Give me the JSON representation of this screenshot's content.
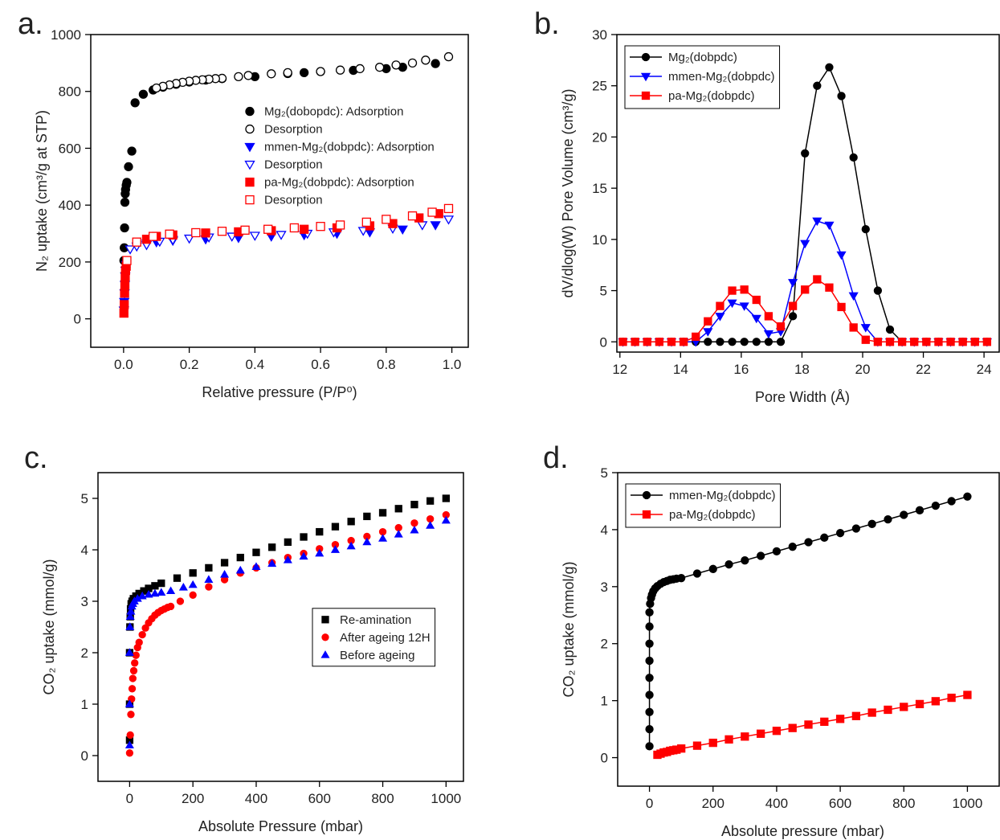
{
  "chart_data": [
    {
      "type": "scatter",
      "panel_label": "a.",
      "x_label": "Relative pressure (P/P⁰)",
      "y_label": "N₂ uptake (cm³/g at STP)",
      "xlim": [
        -0.1,
        1.05
      ],
      "ylim": [
        -100,
        1000
      ],
      "xticks": [
        {
          "value": 0,
          "label": "0.0"
        },
        {
          "value": 0.2,
          "label": "0.2"
        },
        {
          "value": 0.4,
          "label": "0.4"
        },
        {
          "value": 0.6,
          "label": "0.6"
        },
        {
          "value": 0.8,
          "label": "0.8"
        },
        {
          "value": 1,
          "label": "1.0"
        }
      ],
      "yticks": [
        0,
        200,
        400,
        600,
        800,
        1000
      ],
      "legend_loc": "right",
      "legend_box": false,
      "series": [
        {
          "name": "Mg₂(dobopdc): Adsorption",
          "color": "#000000",
          "marker": "circle",
          "filled": true,
          "x": [
            0.001,
            0.002,
            0.003,
            0.004,
            0.005,
            0.006,
            0.008,
            0.01,
            0.015,
            0.025,
            0.035,
            0.06,
            0.09,
            0.12,
            0.16,
            0.2,
            0.25,
            0.3,
            0.4,
            0.5,
            0.55,
            0.6,
            0.7,
            0.8,
            0.85,
            0.95
          ],
          "values": [
            205,
            250,
            320,
            410,
            440,
            455,
            470,
            480,
            535,
            590,
            760,
            790,
            805,
            815,
            825,
            833,
            840,
            845,
            852,
            863,
            866,
            870,
            874,
            880,
            885,
            898
          ]
        },
        {
          "name": "Desorption",
          "color": "#000000",
          "marker": "circle",
          "filled": false,
          "x": [
            0.99,
            0.92,
            0.88,
            0.83,
            0.78,
            0.72,
            0.66,
            0.6,
            0.5,
            0.45,
            0.38,
            0.35,
            0.3,
            0.28,
            0.26,
            0.24,
            0.22,
            0.2,
            0.18,
            0.16,
            0.14,
            0.12,
            0.1
          ],
          "values": [
            922,
            910,
            900,
            893,
            885,
            880,
            875,
            870,
            866,
            862,
            856,
            852,
            846,
            845,
            843,
            841,
            839,
            836,
            832,
            828,
            823,
            818,
            812
          ]
        },
        {
          "name": "mmen-Mg₂(dobpdc): Adsorption",
          "color": "#0000ff",
          "marker": "triangle-down",
          "filled": true,
          "x": [
            0.001,
            0.002,
            0.003,
            0.004,
            0.005,
            0.006,
            0.008,
            0.07,
            0.1,
            0.15,
            0.25,
            0.35,
            0.45,
            0.55,
            0.65,
            0.75,
            0.85,
            0.95
          ],
          "values": [
            30,
            60,
            90,
            120,
            150,
            170,
            190,
            265,
            270,
            275,
            280,
            285,
            290,
            295,
            300,
            305,
            315,
            330
          ]
        },
        {
          "name": "Desorption",
          "color": "#0000ff",
          "marker": "triangle-down",
          "filled": false,
          "x": [
            0.99,
            0.91,
            0.82,
            0.73,
            0.64,
            0.56,
            0.48,
            0.4,
            0.33,
            0.26,
            0.2,
            0.15,
            0.11,
            0.07,
            0.04,
            0.02
          ],
          "values": [
            350,
            330,
            318,
            310,
            305,
            300,
            296,
            293,
            290,
            287,
            283,
            278,
            272,
            260,
            255,
            245
          ]
        },
        {
          "name": "pa-Mg₂(dobpdc): Adsorption",
          "color": "#ff0000",
          "marker": "square",
          "filled": true,
          "x": [
            0.001,
            0.002,
            0.003,
            0.004,
            0.005,
            0.006,
            0.008,
            0.07,
            0.1,
            0.15,
            0.25,
            0.35,
            0.45,
            0.55,
            0.65,
            0.75,
            0.82,
            0.9,
            0.96
          ],
          "values": [
            20,
            50,
            90,
            120,
            150,
            170,
            185,
            280,
            290,
            295,
            302,
            306,
            310,
            315,
            320,
            327,
            335,
            355,
            370
          ]
        },
        {
          "name": "Desorption",
          "color": "#ff0000",
          "marker": "square",
          "filled": false,
          "x": [
            0.99,
            0.94,
            0.88,
            0.8,
            0.74,
            0.66,
            0.6,
            0.52,
            0.44,
            0.37,
            0.3,
            0.22,
            0.14,
            0.09,
            0.04,
            0.01
          ],
          "values": [
            388,
            375,
            362,
            350,
            340,
            330,
            325,
            320,
            315,
            312,
            308,
            303,
            298,
            290,
            270,
            205
          ]
        }
      ]
    },
    {
      "type": "line",
      "panel_label": "b.",
      "x_label": "Pore Width (Å)",
      "y_label": "dV/dlog(W) Pore Volume (cm³/g)",
      "xlim": [
        11.9,
        24.5
      ],
      "ylim": [
        -1,
        30
      ],
      "xticks": [
        12,
        14,
        16,
        18,
        20,
        22,
        24
      ],
      "yticks": [
        0,
        5,
        10,
        15,
        20,
        25,
        30
      ],
      "legend_loc": "upper left",
      "legend_box": true,
      "x": [
        12.1,
        12.5,
        12.9,
        13.3,
        13.7,
        14.1,
        14.5,
        14.9,
        15.3,
        15.7,
        16.1,
        16.5,
        16.9,
        17.3,
        17.7,
        18.1,
        18.5,
        18.9,
        19.3,
        19.7,
        20.1,
        20.5,
        20.9,
        21.3,
        21.7,
        22.1,
        22.5,
        22.9,
        23.3,
        23.7,
        24.1
      ],
      "series": [
        {
          "name": "Mg₂(dobpdc)",
          "color": "#000000",
          "marker": "circle",
          "filled": true,
          "values": [
            0,
            0,
            0,
            0,
            0,
            0,
            0,
            0,
            0,
            0,
            0,
            0,
            0,
            0,
            2.5,
            18.4,
            25,
            26.8,
            24,
            18,
            11,
            5,
            1.2,
            0,
            0,
            0,
            0,
            0,
            0,
            0,
            0
          ]
        },
        {
          "name": "mmen-Mg₂(dobpdc)",
          "color": "#0000ff",
          "marker": "triangle-down",
          "filled": true,
          "values": [
            0,
            0,
            0,
            0,
            0,
            0,
            0,
            1,
            2.5,
            3.8,
            3.5,
            2.3,
            0.8,
            1,
            5.8,
            9.6,
            11.8,
            11.4,
            8.5,
            4.5,
            1.4,
            0,
            0,
            0,
            0,
            0,
            0,
            0,
            0,
            0,
            0
          ]
        },
        {
          "name": "pa-Mg₂(dobpdc)",
          "color": "#ff0000",
          "marker": "square",
          "filled": true,
          "values": [
            0,
            0,
            0,
            0,
            0,
            0,
            0.5,
            2,
            3.5,
            5,
            5.1,
            4.1,
            2.5,
            1.5,
            3.5,
            5.1,
            6.1,
            5.3,
            3.4,
            1.4,
            0.2,
            0,
            0,
            0,
            0,
            0,
            0,
            0,
            0,
            0,
            0
          ]
        }
      ]
    },
    {
      "type": "scatter",
      "panel_label": "c.",
      "x_label": "Absolute Pressure (mbar)",
      "y_label": "CO₂ uptake (mmol/g)",
      "xlim": [
        -100,
        1055
      ],
      "ylim": [
        -0.5,
        5.5
      ],
      "xticks": [
        0,
        200,
        400,
        600,
        800,
        1000
      ],
      "yticks": [
        0,
        1,
        2,
        3,
        4,
        5
      ],
      "legend_loc": "center right",
      "legend_box": true,
      "series": [
        {
          "name": "Re-amination",
          "color": "#000000",
          "marker": "square",
          "filled": true,
          "x": [
            0,
            0,
            0,
            1,
            2,
            3,
            5,
            8,
            12,
            20,
            30,
            45,
            60,
            80,
            100,
            150,
            200,
            250,
            300,
            350,
            400,
            450,
            500,
            550,
            600,
            650,
            700,
            750,
            800,
            850,
            900,
            950,
            1000
          ],
          "values": [
            0.3,
            1.0,
            2.0,
            2.5,
            2.7,
            2.85,
            2.95,
            3.0,
            3.05,
            3.1,
            3.15,
            3.2,
            3.25,
            3.3,
            3.35,
            3.45,
            3.55,
            3.65,
            3.75,
            3.85,
            3.95,
            4.05,
            4.15,
            4.25,
            4.35,
            4.45,
            4.55,
            4.65,
            4.72,
            4.8,
            4.88,
            4.95,
            5.0
          ]
        },
        {
          "name": "After ageing 12H",
          "color": "#ff0000",
          "marker": "circle",
          "filled": true,
          "x": [
            0,
            2,
            4,
            6,
            8,
            10,
            13,
            16,
            20,
            25,
            30,
            40,
            50,
            60,
            70,
            80,
            90,
            100,
            110,
            120,
            130,
            160,
            200,
            250,
            300,
            350,
            400,
            450,
            500,
            550,
            600,
            650,
            700,
            750,
            800,
            850,
            900,
            950,
            1000
          ],
          "values": [
            0.05,
            0.4,
            0.8,
            1.1,
            1.3,
            1.5,
            1.65,
            1.8,
            1.95,
            2.1,
            2.2,
            2.35,
            2.48,
            2.58,
            2.66,
            2.73,
            2.78,
            2.82,
            2.85,
            2.88,
            2.9,
            3.0,
            3.12,
            3.28,
            3.42,
            3.55,
            3.65,
            3.75,
            3.85,
            3.93,
            4.02,
            4.1,
            4.18,
            4.26,
            4.35,
            4.43,
            4.52,
            4.6,
            4.68
          ]
        },
        {
          "name": "Before ageing",
          "color": "#0000ff",
          "marker": "triangle-up",
          "filled": true,
          "x": [
            0,
            0,
            0,
            1,
            2,
            4,
            7,
            10,
            15,
            25,
            40,
            60,
            80,
            100,
            130,
            170,
            200,
            250,
            300,
            350,
            400,
            450,
            500,
            550,
            600,
            650,
            700,
            750,
            800,
            850,
            900,
            950,
            1000
          ],
          "values": [
            0.2,
            1.0,
            2.0,
            2.5,
            2.7,
            2.8,
            2.9,
            2.95,
            3.0,
            3.05,
            3.1,
            3.13,
            3.15,
            3.17,
            3.2,
            3.27,
            3.32,
            3.42,
            3.52,
            3.6,
            3.67,
            3.73,
            3.8,
            3.87,
            3.93,
            4.0,
            4.07,
            4.15,
            4.22,
            4.3,
            4.38,
            4.47,
            4.57
          ]
        }
      ]
    },
    {
      "type": "line",
      "panel_label": "d.",
      "x_label": "Absolute pressure (mbar)",
      "y_label": "CO₂ uptake (mmol/g)",
      "xlim": [
        -100,
        1100
      ],
      "ylim": [
        -0.5,
        5
      ],
      "xticks": [
        0,
        200,
        400,
        600,
        800,
        1000
      ],
      "yticks": [
        0,
        1,
        2,
        3,
        4,
        5
      ],
      "legend_loc": "upper left",
      "legend_box": true,
      "series": [
        {
          "name": "mmen-Mg₂(dobpdc)",
          "color": "#000000",
          "marker": "circle",
          "filled": true,
          "x": [
            0,
            0,
            0,
            0,
            0,
            0,
            0,
            0,
            0,
            2,
            5,
            8,
            12,
            18,
            25,
            35,
            45,
            55,
            65,
            75,
            85,
            100,
            150,
            200,
            250,
            300,
            350,
            400,
            450,
            500,
            550,
            600,
            650,
            700,
            750,
            800,
            850,
            900,
            950,
            1000
          ],
          "values": [
            0.2,
            0.5,
            0.8,
            1.1,
            1.4,
            1.7,
            2.0,
            2.3,
            2.55,
            2.7,
            2.8,
            2.86,
            2.92,
            2.97,
            3.01,
            3.05,
            3.08,
            3.1,
            3.12,
            3.13,
            3.14,
            3.15,
            3.23,
            3.31,
            3.39,
            3.46,
            3.54,
            3.62,
            3.7,
            3.78,
            3.86,
            3.94,
            4.02,
            4.1,
            4.18,
            4.26,
            4.34,
            4.42,
            4.5,
            4.58
          ]
        },
        {
          "name": "pa-Mg₂(dobpdc)",
          "color": "#ff0000",
          "marker": "square",
          "filled": true,
          "x": [
            25,
            35,
            45,
            55,
            65,
            75,
            85,
            100,
            150,
            200,
            250,
            300,
            350,
            400,
            450,
            500,
            550,
            600,
            650,
            700,
            750,
            800,
            850,
            900,
            950,
            1000
          ],
          "values": [
            0.05,
            0.07,
            0.09,
            0.1,
            0.12,
            0.13,
            0.14,
            0.16,
            0.21,
            0.26,
            0.32,
            0.37,
            0.42,
            0.47,
            0.52,
            0.58,
            0.63,
            0.68,
            0.73,
            0.79,
            0.84,
            0.89,
            0.94,
            0.99,
            1.05,
            1.1
          ]
        }
      ]
    }
  ]
}
